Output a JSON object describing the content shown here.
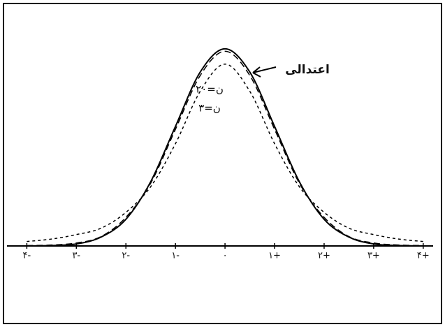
{
  "chart_data": {
    "type": "line",
    "x": [
      -4,
      -3.5,
      -3,
      -2.5,
      -2,
      -1.5,
      -1,
      -0.5,
      0,
      0.5,
      1,
      1.5,
      2,
      2.5,
      3,
      3.5,
      4
    ],
    "series": [
      {
        "name": "اعتدالی",
        "color": "#000",
        "dash": "none",
        "values": [
          0.0001,
          0.0009,
          0.004,
          0.018,
          0.054,
          0.13,
          0.242,
          0.352,
          0.399,
          0.352,
          0.242,
          0.13,
          0.054,
          0.018,
          0.004,
          0.0009,
          0.0001
        ]
      },
      {
        "name": "ن=۲۰",
        "color": "#000",
        "dash": "9 5",
        "values": [
          0.0007,
          0.0019,
          0.006,
          0.019,
          0.058,
          0.127,
          0.236,
          0.345,
          0.394,
          0.345,
          0.236,
          0.127,
          0.058,
          0.019,
          0.006,
          0.0019,
          0.0007
        ]
      },
      {
        "name": "ن=۳",
        "color": "#000",
        "dash": "4 4",
        "values": [
          0.009,
          0.014,
          0.023,
          0.036,
          0.068,
          0.12,
          0.207,
          0.313,
          0.368,
          0.313,
          0.207,
          0.12,
          0.068,
          0.036,
          0.023,
          0.014,
          0.009
        ]
      }
    ],
    "xlim": [
      -4.4,
      4.2
    ],
    "ylim": [
      0,
      0.42
    ],
    "xticks": [
      {
        "value": -4,
        "label": "۴-"
      },
      {
        "value": -3,
        "label": "۳-"
      },
      {
        "value": -2,
        "label": "۲-"
      },
      {
        "value": -1,
        "label": "۱-"
      },
      {
        "value": 0,
        "label": "۰"
      },
      {
        "value": 1,
        "label": "۱+"
      },
      {
        "value": 2,
        "label": "۲+"
      },
      {
        "value": 3,
        "label": "۳+"
      },
      {
        "value": 4,
        "label": "۴+"
      }
    ]
  }
}
